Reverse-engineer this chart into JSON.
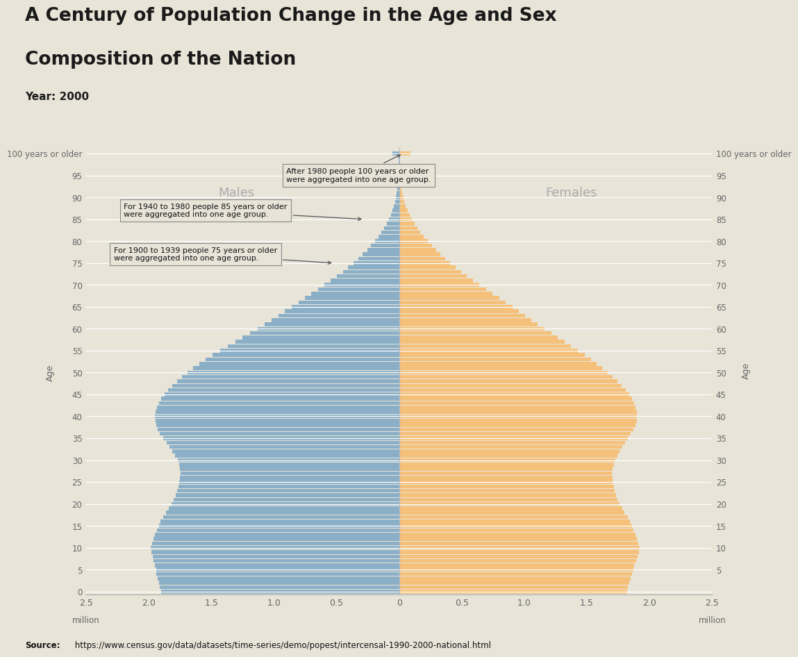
{
  "title_line1": "A Century of Population Change in the Age and Sex",
  "title_line2": "Composition of the Nation",
  "subtitle": "Year: 2000",
  "source_bold": "Source:",
  "source_rest": " https://www.census.gov/data/datasets/time-series/demo/popest/intercensal-1990-2000-national.html",
  "background_color": "#e8e4d8",
  "male_color": "#8aafc7",
  "female_color": "#f5c07a",
  "ages": [
    0,
    1,
    2,
    3,
    4,
    5,
    6,
    7,
    8,
    9,
    10,
    11,
    12,
    13,
    14,
    15,
    16,
    17,
    18,
    19,
    20,
    21,
    22,
    23,
    24,
    25,
    26,
    27,
    28,
    29,
    30,
    31,
    32,
    33,
    34,
    35,
    36,
    37,
    38,
    39,
    40,
    41,
    42,
    43,
    44,
    45,
    46,
    47,
    48,
    49,
    50,
    51,
    52,
    53,
    54,
    55,
    56,
    57,
    58,
    59,
    60,
    61,
    62,
    63,
    64,
    65,
    66,
    67,
    68,
    69,
    70,
    71,
    72,
    73,
    74,
    75,
    76,
    77,
    78,
    79,
    80,
    81,
    82,
    83,
    84,
    85,
    86,
    87,
    88,
    89,
    90,
    91,
    92,
    93,
    94,
    95,
    96,
    97,
    98,
    99,
    100
  ],
  "male_values": [
    1900000,
    1910000,
    1920000,
    1930000,
    1940000,
    1940000,
    1950000,
    1960000,
    1970000,
    1980000,
    1985000,
    1975000,
    1960000,
    1950000,
    1935000,
    1920000,
    1905000,
    1885000,
    1860000,
    1840000,
    1820000,
    1800000,
    1785000,
    1775000,
    1765000,
    1755000,
    1750000,
    1745000,
    1750000,
    1758000,
    1770000,
    1788000,
    1810000,
    1835000,
    1858000,
    1885000,
    1910000,
    1928000,
    1942000,
    1948000,
    1950000,
    1945000,
    1935000,
    1920000,
    1900000,
    1875000,
    1845000,
    1810000,
    1775000,
    1735000,
    1690000,
    1645000,
    1595000,
    1545000,
    1490000,
    1430000,
    1368000,
    1308000,
    1250000,
    1192000,
    1132000,
    1075000,
    1018000,
    965000,
    912000,
    858000,
    805000,
    752000,
    700000,
    648000,
    595000,
    545000,
    496000,
    450000,
    406000,
    365000,
    326000,
    290000,
    256000,
    224000,
    194000,
    166000,
    142000,
    120000,
    100000,
    82000,
    67000,
    53000,
    42000,
    32000,
    24000,
    18000,
    13000,
    9000,
    6000,
    4000,
    3000,
    2000,
    1000,
    1000,
    55000
  ],
  "female_values": [
    1820000,
    1828000,
    1840000,
    1850000,
    1862000,
    1870000,
    1880000,
    1892000,
    1903000,
    1914000,
    1922000,
    1912000,
    1898000,
    1886000,
    1872000,
    1858000,
    1843000,
    1825000,
    1802000,
    1782000,
    1762000,
    1744000,
    1731000,
    1722000,
    1715000,
    1708000,
    1705000,
    1702000,
    1706000,
    1714000,
    1725000,
    1742000,
    1760000,
    1782000,
    1804000,
    1828000,
    1852000,
    1872000,
    1888000,
    1898000,
    1902000,
    1900000,
    1890000,
    1876000,
    1858000,
    1836000,
    1808000,
    1775000,
    1742000,
    1705000,
    1665000,
    1622000,
    1578000,
    1532000,
    1484000,
    1430000,
    1375000,
    1320000,
    1268000,
    1215000,
    1162000,
    1108000,
    1055000,
    1004000,
    955000,
    904000,
    853000,
    800000,
    748000,
    695000,
    642000,
    590000,
    540000,
    493000,
    450000,
    408000,
    368000,
    330000,
    294000,
    260000,
    228000,
    198000,
    170000,
    145000,
    122000,
    101000,
    83000,
    68000,
    54000,
    42000,
    33000,
    25000,
    18000,
    13000,
    9000,
    6000,
    4000,
    3000,
    2000,
    1000,
    90000
  ],
  "xlim": 2500000,
  "ytick_positions": [
    0,
    5,
    10,
    15,
    20,
    25,
    30,
    35,
    40,
    45,
    50,
    55,
    60,
    65,
    70,
    75,
    80,
    85,
    90,
    95,
    100
  ],
  "ytick_labels_left": [
    "0",
    "5",
    "10",
    "15",
    "20",
    "25",
    "30",
    "35",
    "40",
    "45",
    "50",
    "55",
    "60",
    "65",
    "70",
    "75",
    "80",
    "85",
    "90",
    "95",
    "100 years or older"
  ],
  "ytick_labels_right": [
    "",
    "5",
    "10",
    "15",
    "20",
    "25",
    "30",
    "35",
    "40",
    "45",
    "50",
    "55",
    "60",
    "65",
    "70",
    "75",
    "80",
    "85",
    "90",
    "95",
    "100 years or older"
  ]
}
